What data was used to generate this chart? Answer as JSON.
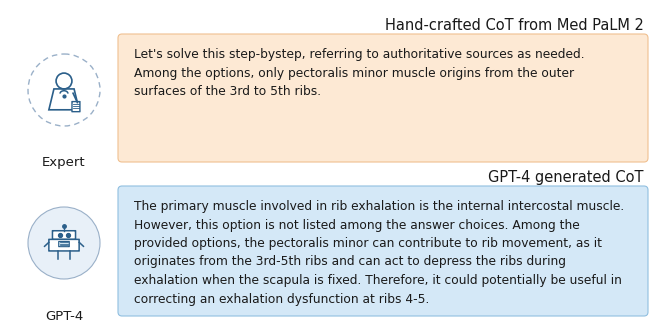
{
  "title1": "Hand-crafted CoT from Med PaLM 2",
  "title2": "GPT-4 generated CoT",
  "label1": "Expert",
  "label2": "GPT-4",
  "text1": "Let's solve this step-bystep, referring to authoritative sources as needed.\nAmong the options, only pectoralis minor muscle origins from the outer\nsurfaces of the 3rd to 5th ribs.",
  "text2": "The primary muscle involved in rib exhalation is the internal intercostal muscle.\nHowever, this option is not listed among the answer choices. Among the\nprovided options, the pectoralis minor can contribute to rib movement, as it\noriginates from the 3rd-5th ribs and can act to depress the ribs during\nexhalation when the scapula is fixed. Therefore, it could potentially be useful in\ncorrecting an exhalation dysfunction at ribs 4-5.",
  "box1_color": "#fde9d4",
  "box2_color": "#d4e8f7",
  "box1_edge_color": "#f0c090",
  "box2_edge_color": "#90bfe0",
  "title_fontsize": 10.5,
  "label_fontsize": 9.5,
  "text_fontsize": 8.8,
  "bg_color": "#ffffff",
  "text_color": "#1a1a1a",
  "title_color": "#1a1a1a",
  "icon_color": "#2b5f8a",
  "icon_circle_color": "#c8d8e8"
}
